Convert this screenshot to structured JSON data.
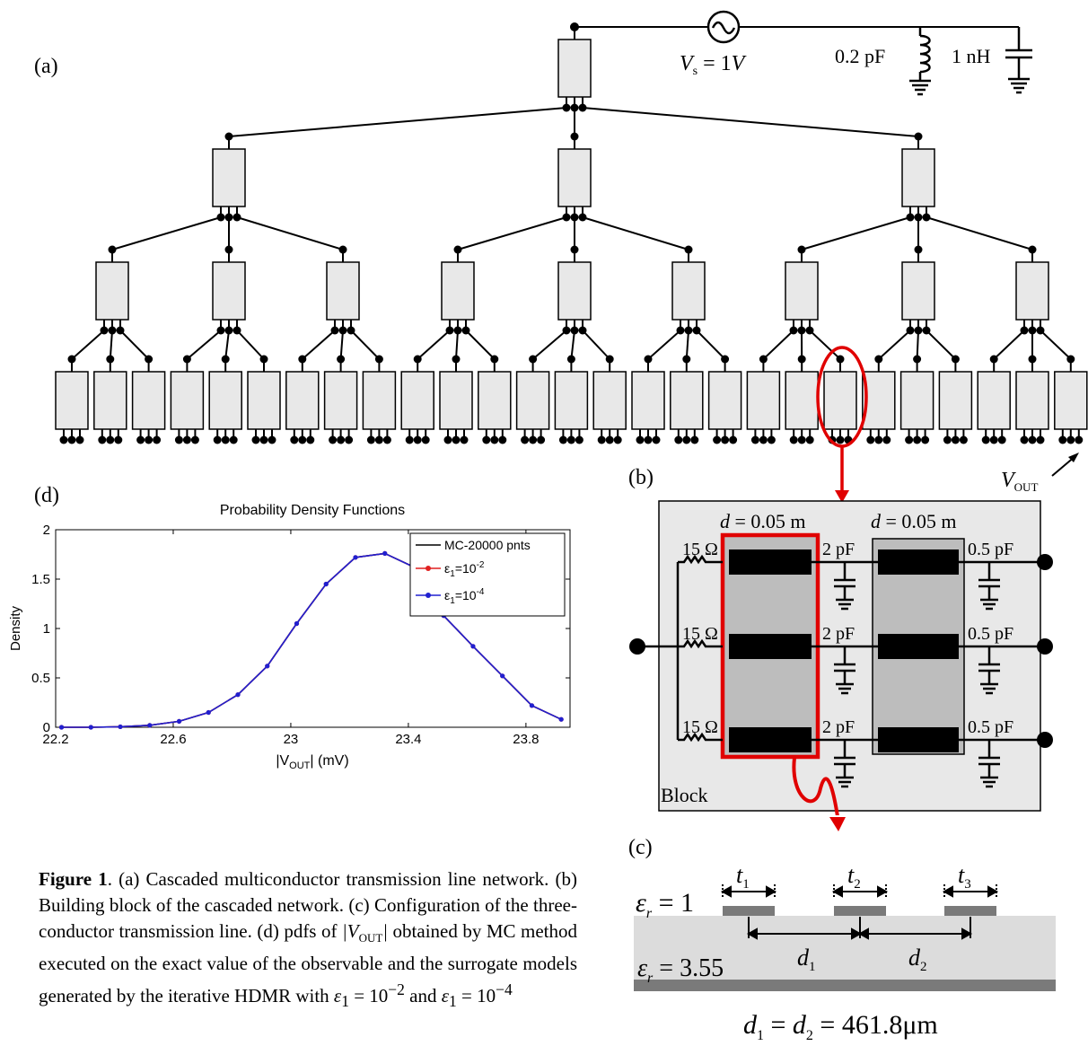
{
  "panel_labels": {
    "a": "(a)",
    "b": "(b)",
    "c": "(c)",
    "d": "(d)"
  },
  "source": {
    "label": "V_s = 1V",
    "cap_label": "0.2 pF",
    "ind_label": "1 nH"
  },
  "vout_label": "V_OUT",
  "block": {
    "title": "Block",
    "d_labels": [
      "d = 0.05 m",
      "d = 0.05 m"
    ],
    "resistors": [
      "15 Ω",
      "15 Ω",
      "15 Ω"
    ],
    "caps_mid": [
      "2 pF",
      "2 pF",
      "2 pF"
    ],
    "caps_right": [
      "0.5 pF",
      "0.5 pF",
      "0.5 pF"
    ]
  },
  "cross_section": {
    "eps_top": "ε_r = 1",
    "eps_sub": "ε_r = 3.55",
    "widths": [
      "t_1",
      "t_2",
      "t_3"
    ],
    "spacings": [
      "d_1",
      "d_2"
    ],
    "bottom_eq": "d_1 = d_2 = 461.8μm"
  },
  "caption": {
    "bold": "Figure 1",
    "text": ". (a) Cascaded multiconductor transmission line network. (b) Building block of the cascaded network. (c) Configuration of the three-conductor transmission line. (d) pdfs of |V_OUT| obtained by MC method executed on the exact value of the observable and the surrogate models generated by the iterative HDMR with ε_1 = 10^-2 and ε_1 = 10^-4"
  },
  "chart_data": {
    "type": "line",
    "title": "Probability Density Functions",
    "xlabel": "|V_OUT| (mV)",
    "ylabel": "Density",
    "xlim": [
      22.2,
      23.95
    ],
    "ylim": [
      0,
      2
    ],
    "xticks": [
      "22.2",
      "22.6",
      "23",
      "23.4",
      "23.8"
    ],
    "yticks": [
      "0",
      "0.5",
      "1",
      "1.5",
      "2"
    ],
    "legend_position": "top-right",
    "series": [
      {
        "name": "MC-20000 pnts",
        "color": "#000000",
        "marker": "none",
        "x": [
          22.22,
          22.32,
          22.42,
          22.52,
          22.62,
          22.72,
          22.82,
          22.92,
          23.02,
          23.12,
          23.22,
          23.32,
          23.42,
          23.52,
          23.62,
          23.72,
          23.82,
          23.92
        ],
        "y": [
          0.0,
          0.0,
          0.005,
          0.02,
          0.06,
          0.15,
          0.33,
          0.62,
          1.05,
          1.45,
          1.72,
          1.76,
          1.62,
          1.13,
          0.82,
          0.52,
          0.22,
          0.08
        ]
      },
      {
        "name": "ε1=10^-2",
        "color": "#e02020",
        "marker": "dot",
        "x": [
          22.22,
          22.32,
          22.42,
          22.52,
          22.62,
          22.72,
          22.82,
          22.92,
          23.02,
          23.12,
          23.22,
          23.32,
          23.42,
          23.52,
          23.62,
          23.72,
          23.82,
          23.92
        ],
        "y": [
          0.0,
          0.0,
          0.005,
          0.02,
          0.06,
          0.15,
          0.33,
          0.62,
          1.05,
          1.45,
          1.72,
          1.76,
          1.62,
          1.13,
          0.82,
          0.52,
          0.22,
          0.08
        ]
      },
      {
        "name": "ε1=10^-4",
        "color": "#2020d0",
        "marker": "dot",
        "x": [
          22.22,
          22.32,
          22.42,
          22.52,
          22.62,
          22.72,
          22.82,
          22.92,
          23.02,
          23.12,
          23.22,
          23.32,
          23.42,
          23.52,
          23.62,
          23.72,
          23.82,
          23.92
        ],
        "y": [
          0.0,
          0.0,
          0.005,
          0.02,
          0.06,
          0.15,
          0.33,
          0.62,
          1.05,
          1.45,
          1.72,
          1.76,
          1.62,
          1.13,
          0.82,
          0.52,
          0.22,
          0.08
        ]
      }
    ]
  }
}
